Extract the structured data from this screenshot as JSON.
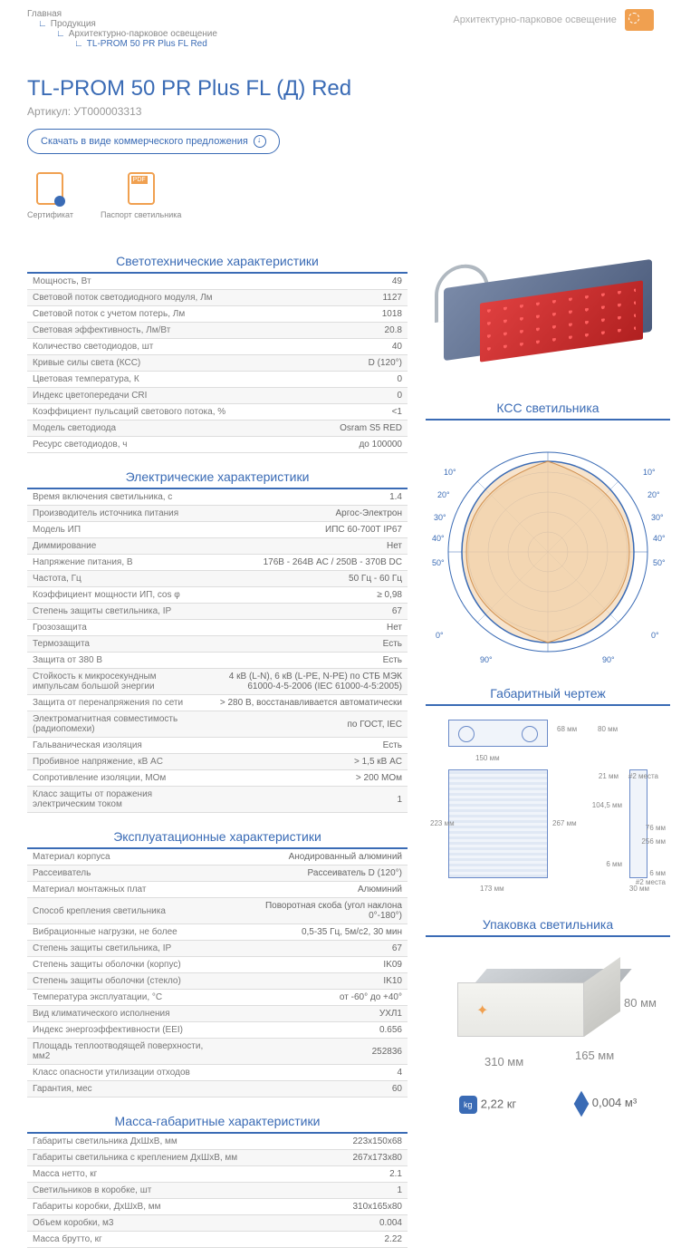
{
  "breadcrumb": {
    "l0": "Главная",
    "l1": "Продукция",
    "l2": "Архитектурно-парковое освещение",
    "l3": "TL-PROM 50 PR Plus FL Red"
  },
  "header_category": "Архитектурно-парковое освещение",
  "title": "TL-PROM 50 PR Plus FL (Д) Red",
  "article_label": "Артикул: УТ000003313",
  "download_btn": "Скачать в виде коммерческого предложения",
  "docs": {
    "cert": "Сертификат",
    "passport": "Паспорт светильника"
  },
  "sections": {
    "photo": "Светотехнические характеристики",
    "elec": "Электрические характеристики",
    "oper": "Эксплуатационные характеристики",
    "mass": "Масса-габаритные характеристики",
    "kss": "КСС светильника",
    "dim": "Габаритный чертеж",
    "pack": "Упаковка светильника"
  },
  "photo": [
    [
      "Мощность, Вт",
      "49"
    ],
    [
      "Световой поток светодиодного модуля, Лм",
      "1127"
    ],
    [
      "Световой поток с учетом потерь, Лм",
      "1018"
    ],
    [
      "Световая эффективность, Лм/Вт",
      "20.8"
    ],
    [
      "Количество светодиодов, шт",
      "40"
    ],
    [
      "Кривые силы света (КСС)",
      "D (120°)"
    ],
    [
      "Цветовая температура, К",
      "0"
    ],
    [
      "Индекс цветопередачи CRI",
      "0"
    ],
    [
      "Коэффициент пульсаций светового потока, %",
      "<1"
    ],
    [
      "Модель светодиода",
      "Osram S5 RED"
    ],
    [
      "Ресурс светодиодов, ч",
      "до 100000"
    ]
  ],
  "elec": [
    [
      "Время включения светильника, с",
      "1.4"
    ],
    [
      "Производитель источника питания",
      "Аргос-Электрон"
    ],
    [
      "Модель ИП",
      "ИПС 60-700Т IP67"
    ],
    [
      "Диммирование",
      "Нет"
    ],
    [
      "Напряжение питания, В",
      "176В - 264В AC / 250В - 370В DC"
    ],
    [
      "Частота, Гц",
      "50 Гц - 60 Гц"
    ],
    [
      "Коэффициент мощности ИП, cos φ",
      "≥ 0,98"
    ],
    [
      "Степень защиты светильника, IP",
      "67"
    ],
    [
      "Грозозащита",
      "Нет"
    ],
    [
      "Термозащита",
      "Есть"
    ],
    [
      "Защита от 380 В",
      "Есть"
    ],
    [
      "Стойкость к микросекундным импульсам большой энергии",
      "4 кВ (L-N), 6 кВ (L-PE, N-PE) по СТБ МЭК 61000-4-5-2006 (IEC 61000-4-5:2005)"
    ],
    [
      "Защита от перенапряжения по сети",
      "> 280 В, восстанавливается автоматически"
    ],
    [
      "Электромагнитная совместимость (радиопомехи)",
      "по ГОСТ, IEC"
    ],
    [
      "Гальваническая изоляция",
      "Есть"
    ],
    [
      "Пробивное напряжение, кВ AC",
      "> 1,5 кВ AC"
    ],
    [
      "Сопротивление изоляции, МОм",
      "> 200 МОм"
    ],
    [
      "Класс защиты от поражения электрическим током",
      "1"
    ]
  ],
  "oper": [
    [
      "Материал корпуса",
      "Анодированный алюминий"
    ],
    [
      "Рассеиватель",
      "Рассеиватель D (120°)"
    ],
    [
      "Материал монтажных плат",
      "Алюминий"
    ],
    [
      "Способ крепления светильника",
      "Поворотная скоба (угол наклона 0°-180°)"
    ],
    [
      "Вибрационные нагрузки, не более",
      "0,5-35 Гц, 5м/с2, 30 мин"
    ],
    [
      "Степень защиты светильника, IP",
      "67"
    ],
    [
      "Степень защиты оболочки (корпус)",
      "IK09"
    ],
    [
      "Степень защиты оболочки (стекло)",
      "IK10"
    ],
    [
      "Температура эксплуатации, °С",
      "от -60° до +40°"
    ],
    [
      "Вид климатического исполнения",
      "УХЛ1"
    ],
    [
      "Индекс энергоэффективности (EEI)",
      "0.656"
    ],
    [
      "Площадь теплоотводящей поверхности, мм2",
      "252836"
    ],
    [
      "Класс опасности утилизации отходов",
      "4"
    ],
    [
      "Гарантия, мес",
      "60"
    ]
  ],
  "mass": [
    [
      "Габариты светильника ДхШхВ, мм",
      "223х150х68"
    ],
    [
      "Габариты светильника с креплением ДхШхВ, мм",
      "267х173х80"
    ],
    [
      "Масса нетто, кг",
      "2.1"
    ],
    [
      "Светильников в коробке, шт",
      "1"
    ],
    [
      "Габариты коробки, ДхШхВ, мм",
      "310х165х80"
    ],
    [
      "Объем коробки, м3",
      "0.004"
    ],
    [
      "Масса брутто, кг",
      "2.22"
    ]
  ],
  "polar_angles": [
    "10°",
    "20°",
    "30°",
    "40°",
    "50°",
    "0°",
    "10°",
    "20°",
    "30°",
    "40°",
    "50°",
    "0°",
    "90°",
    "90°"
  ],
  "dim": {
    "d68": "68 мм",
    "d80": "80 мм",
    "d150": "150 мм",
    "d223": "223 мм",
    "d267": "267 мм",
    "d173": "173 мм",
    "d104": "104,5 мм",
    "d21": "21 мм",
    "d76": "76 мм",
    "d256": "256 мм",
    "d6": "6 мм",
    "d30": "30 мм",
    "note2": "#2 места"
  },
  "pack": {
    "w": "310 мм",
    "d": "165 мм",
    "h": "80 мм",
    "weight": "2,22 кг",
    "volume": "0,004 м³"
  }
}
